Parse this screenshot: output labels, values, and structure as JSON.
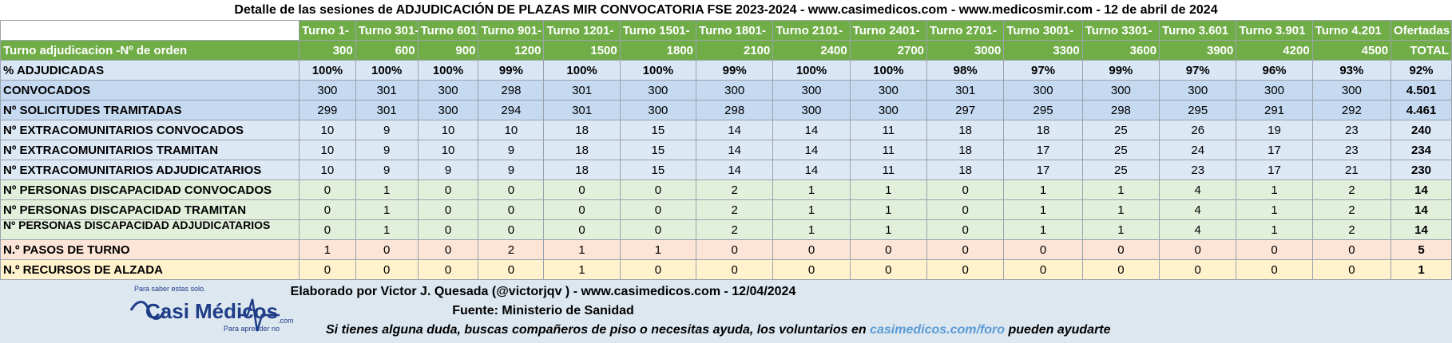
{
  "title": "Detalle de las sesiones de ADJUDICACIÓN DE PLAZAS MIR CONVOCATORIA FSE 2023-2024  - www.casimedicos.com - www.medicosmir.com - 12 de abril de 2024",
  "header": {
    "turnos": [
      "Turno 1-",
      "Turno 301-",
      "Turno 601-",
      "Turno 901-",
      "Turno 1201-",
      "Turno 1501-",
      "Turno 1801-",
      "Turno 2101-",
      "Turno 2401-",
      "Turno 2701-",
      "Turno 3001-",
      "Turno 3301-",
      "Turno 3.601",
      "Turno 3.901",
      "Turno 4.201",
      "Ofertadas"
    ],
    "row2_label": "Turno adjudicacion -Nº de orden",
    "ends": [
      "300",
      "600",
      "900",
      "1200",
      "1500",
      "1800",
      "2100",
      "2400",
      "2700",
      "3000",
      "3300",
      "3600",
      "3900",
      "4200",
      "4500",
      "TOTAL"
    ]
  },
  "rows": [
    {
      "label": "% ADJUDICADAS",
      "values": [
        "100%",
        "100%",
        "100%",
        "99%",
        "100%",
        "100%",
        "99%",
        "100%",
        "100%",
        "98%",
        "97%",
        "99%",
        "97%",
        "96%",
        "93%",
        "92%"
      ]
    },
    {
      "label": "CONVOCADOS",
      "values": [
        "300",
        "301",
        "300",
        "298",
        "301",
        "300",
        "300",
        "300",
        "300",
        "301",
        "300",
        "300",
        "300",
        "300",
        "300",
        "4.501"
      ]
    },
    {
      "label": "Nº SOLICITUDES TRAMITADAS",
      "values": [
        "299",
        "301",
        "300",
        "294",
        "301",
        "300",
        "298",
        "300",
        "300",
        "297",
        "295",
        "298",
        "295",
        "291",
        "292",
        "4.461"
      ]
    },
    {
      "label": "Nº EXTRACOMUNITARIOS CONVOCADOS",
      "values": [
        "10",
        "9",
        "10",
        "10",
        "18",
        "15",
        "14",
        "14",
        "11",
        "18",
        "18",
        "25",
        "26",
        "19",
        "23",
        "240"
      ]
    },
    {
      "label": "Nº EXTRACOMUNITARIOS TRAMITAN",
      "values": [
        "10",
        "9",
        "10",
        "9",
        "18",
        "15",
        "14",
        "14",
        "11",
        "18",
        "17",
        "25",
        "24",
        "17",
        "23",
        "234"
      ]
    },
    {
      "label": "Nº EXTRACOMUNITARIOS ADJUDICATARIOS",
      "values": [
        "10",
        "9",
        "9",
        "9",
        "18",
        "15",
        "14",
        "14",
        "11",
        "18",
        "17",
        "25",
        "23",
        "17",
        "21",
        "230"
      ]
    },
    {
      "label": "Nº PERSONAS DISCAPACIDAD CONVOCADOS",
      "values": [
        "0",
        "1",
        "0",
        "0",
        "0",
        "0",
        "2",
        "1",
        "1",
        "0",
        "1",
        "1",
        "4",
        "1",
        "2",
        "14"
      ]
    },
    {
      "label": "Nº PERSONAS DISCAPACIDAD TRAMITAN",
      "values": [
        "0",
        "1",
        "0",
        "0",
        "0",
        "0",
        "2",
        "1",
        "1",
        "0",
        "1",
        "1",
        "4",
        "1",
        "2",
        "14"
      ]
    },
    {
      "label": "Nº PERSONAS DISCAPACIDAD ADJUDICATARIOS",
      "values": [
        "0",
        "1",
        "0",
        "0",
        "0",
        "0",
        "2",
        "1",
        "1",
        "0",
        "1",
        "1",
        "4",
        "1",
        "2",
        "14"
      ]
    },
    {
      "label": "N.º PASOS DE TURNO",
      "values": [
        "1",
        "0",
        "0",
        "2",
        "1",
        "1",
        "0",
        "0",
        "0",
        "0",
        "0",
        "0",
        "0",
        "0",
        "0",
        "5"
      ]
    },
    {
      "label": "N.º RECURSOS DE ALZADA",
      "values": [
        "0",
        "0",
        "0",
        "0",
        "1",
        "0",
        "0",
        "0",
        "0",
        "0",
        "0",
        "0",
        "0",
        "0",
        "0",
        "1"
      ]
    }
  ],
  "footer": {
    "author": "Elaborado por Victor J. Quesada (@victorjqv ) - www.casimedicos.com - 12/04/2024",
    "source": "Fuente: Ministerio de Sanidad",
    "help_prefix": "Si tienes alguna duda, buscas compañeros de piso o necesitas ayuda, los voluntarios en ",
    "help_link": "casimedicos.com/foro",
    "help_suffix": " pueden ayudarte"
  },
  "logo": {
    "tagline_top": "Para saber estas solo.",
    "name_part1": "Casi",
    "name_part2": "Médicos",
    "suffix": ".com",
    "tagline_bottom": "Para aprender no"
  },
  "colors": {
    "header_green": "#70ad47",
    "row_blue": "#c5d9f1",
    "row_green": "#e2efda",
    "row_orange": "#fce4d6",
    "row_yellow": "#fff2cc",
    "logo_blue": "#1f3c88",
    "link_blue": "#5b9bd5"
  }
}
